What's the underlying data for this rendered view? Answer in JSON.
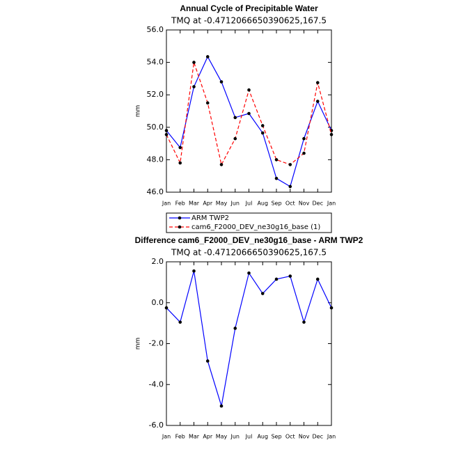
{
  "chart_data": [
    {
      "type": "line",
      "title": "Annual Cycle of Precipitable Water",
      "subtitle": "TMQ at -0.4712066650390625,167.5",
      "y_label": "mm",
      "categories": [
        "Jan",
        "Feb",
        "Mar",
        "Apr",
        "May",
        "Jun",
        "Jul",
        "Aug",
        "Sep",
        "Oct",
        "Nov",
        "Dec",
        "Jan"
      ],
      "series": [
        {
          "name": "ARM TWP2",
          "color": "#0000ff",
          "dash": false,
          "values": [
            49.8,
            48.75,
            52.5,
            54.35,
            52.8,
            50.6,
            50.85,
            49.65,
            46.85,
            46.35,
            49.3,
            51.6,
            49.8
          ]
        },
        {
          "name": "cam6_F2000_DEV_ne30g16_base (1)",
          "color": "#ff0000",
          "dash": true,
          "values": [
            49.55,
            47.8,
            54.0,
            51.5,
            47.7,
            49.3,
            52.3,
            50.1,
            48.0,
            47.7,
            48.4,
            52.75,
            49.55
          ]
        }
      ],
      "ylim": [
        46,
        56
      ],
      "yticks": [
        {
          "value": 46,
          "label": "46.0"
        },
        {
          "value": 48,
          "label": "48.0"
        },
        {
          "value": 50,
          "label": "50.0"
        },
        {
          "value": 52,
          "label": "52.0"
        },
        {
          "value": 54,
          "label": "54.0"
        },
        {
          "value": 56,
          "label": "56.0"
        }
      ],
      "legend": "below"
    },
    {
      "type": "line",
      "title": "Difference cam6_F2000_DEV_ne30g16_base - ARM TWP2",
      "subtitle": "TMQ at -0.4712066650390625,167.5",
      "y_label": "mm",
      "categories": [
        "Jan",
        "Feb",
        "Mar",
        "Apr",
        "May",
        "Jun",
        "Jul",
        "Aug",
        "Sep",
        "Oct",
        "Nov",
        "Dec",
        "Jan"
      ],
      "series": [
        {
          "color": "#0000ff",
          "dash": false,
          "values": [
            -0.25,
            -0.95,
            1.55,
            -2.85,
            -5.05,
            -1.25,
            1.45,
            0.45,
            1.15,
            1.3,
            -0.95,
            1.15,
            -0.25
          ]
        }
      ],
      "ylim": [
        -6,
        2
      ],
      "yticks": [
        {
          "value": -6,
          "label": "-6.0"
        },
        {
          "value": -4,
          "label": "-4.0"
        },
        {
          "value": -2,
          "label": "-2.0"
        },
        {
          "value": 0,
          "label": "0.0"
        },
        {
          "value": 2,
          "label": "2.0"
        }
      ]
    }
  ]
}
